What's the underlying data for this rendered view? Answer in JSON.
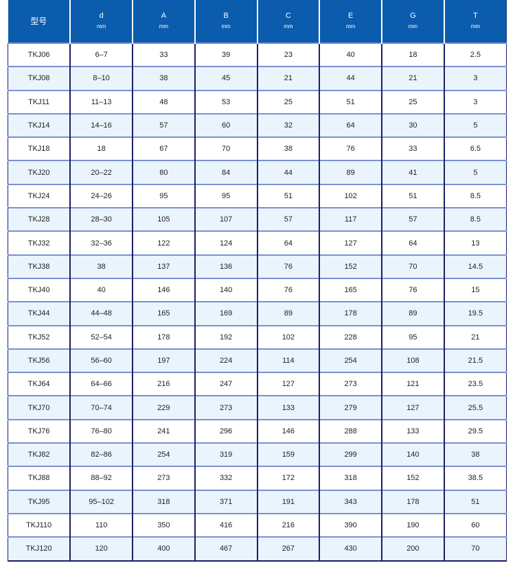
{
  "table": {
    "headers": [
      {
        "label": "型号",
        "unit": ""
      },
      {
        "label": "d",
        "unit": "mm"
      },
      {
        "label": "A",
        "unit": "mm"
      },
      {
        "label": "B",
        "unit": "mm"
      },
      {
        "label": "C",
        "unit": "mm"
      },
      {
        "label": "E",
        "unit": "mm"
      },
      {
        "label": "G",
        "unit": "mm"
      },
      {
        "label": "T",
        "unit": "mm"
      }
    ],
    "rows": [
      [
        "TKJ06",
        "6–7",
        "33",
        "39",
        "23",
        "40",
        "18",
        "2.5"
      ],
      [
        "TKJ08",
        "8–10",
        "38",
        "45",
        "21",
        "44",
        "21",
        "3"
      ],
      [
        "TKJ11",
        "11–13",
        "48",
        "53",
        "25",
        "51",
        "25",
        "3"
      ],
      [
        "TKJ14",
        "14–16",
        "57",
        "60",
        "32",
        "64",
        "30",
        "5"
      ],
      [
        "TKJ18",
        "18",
        "67",
        "70",
        "38",
        "76",
        "33",
        "6.5"
      ],
      [
        "TKJ20",
        "20–22",
        "80",
        "84",
        "44",
        "89",
        "41",
        "5"
      ],
      [
        "TKJ24",
        "24–26",
        "95",
        "95",
        "51",
        "102",
        "51",
        "8.5"
      ],
      [
        "TKJ28",
        "28–30",
        "105",
        "107",
        "57",
        "117",
        "57",
        "8.5"
      ],
      [
        "TKJ32",
        "32–36",
        "122",
        "124",
        "64",
        "127",
        "64",
        "13"
      ],
      [
        "TKJ38",
        "38",
        "137",
        "136",
        "76",
        "152",
        "70",
        "14.5"
      ],
      [
        "TKJ40",
        "40",
        "146",
        "140",
        "76",
        "165",
        "76",
        "15"
      ],
      [
        "TKJ44",
        "44–48",
        "165",
        "169",
        "89",
        "178",
        "89",
        "19.5"
      ],
      [
        "TKJ52",
        "52–54",
        "178",
        "192",
        "102",
        "228",
        "95",
        "21"
      ],
      [
        "TKJ56",
        "56–60",
        "197",
        "224",
        "114",
        "254",
        "108",
        "21.5"
      ],
      [
        "TKJ64",
        "64–66",
        "216",
        "247",
        "127",
        "273",
        "121",
        "23.5"
      ],
      [
        "TKJ70",
        "70–74",
        "229",
        "273",
        "133",
        "279",
        "127",
        "25.5"
      ],
      [
        "TKJ76",
        "76–80",
        "241",
        "296",
        "146",
        "288",
        "133",
        "29.5"
      ],
      [
        "TKJ82",
        "82–86",
        "254",
        "319",
        "159",
        "299",
        "140",
        "38"
      ],
      [
        "TKJ88",
        "88–92",
        "273",
        "332",
        "172",
        "318",
        "152",
        "38.5"
      ],
      [
        "TKJ95",
        "95–102",
        "318",
        "371",
        "191",
        "343",
        "178",
        "51"
      ],
      [
        "TKJ110",
        "110",
        "350",
        "416",
        "216",
        "390",
        "190",
        "60"
      ],
      [
        "TKJ120",
        "120",
        "400",
        "467",
        "267",
        "430",
        "200",
        "70"
      ]
    ]
  },
  "colors": {
    "header_bg": "#0b5cad",
    "alt_row_bg": "#e9f4fd",
    "border": "#1a1f66"
  }
}
